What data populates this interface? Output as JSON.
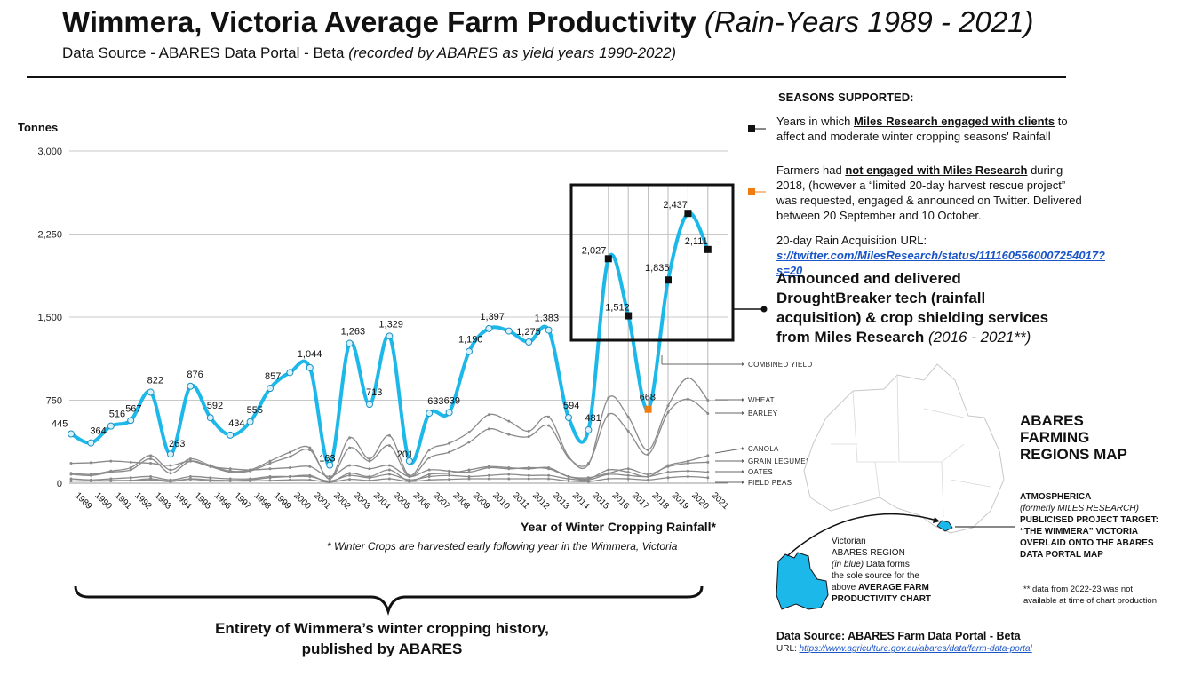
{
  "header": {
    "title_main": "Wimmera, Victoria Average Farm Productivity",
    "title_italic": "(Rain-Years 1989 - 2021)",
    "subtitle_main": "Data Source - ABARES Data Portal - Beta",
    "subtitle_italic": "(recorded by ABARES as yield years 1990-2022)"
  },
  "legend": {
    "heading": "SEASONS SUPPORTED:",
    "item1_pre": "Years in which ",
    "item1_link": "Miles Research engaged with clients",
    "item1_post": " to affect and moderate winter cropping seasons' Rainfall",
    "item2_pre": "Farmers had ",
    "item2_link": "not engaged with Miles Research",
    "item2_post": " during 2018, (however a “limited 20-day harvest rescue project” was requested, engaged & announced on Twitter. Delivered between 20 September and 10 October.",
    "url_label": "20-day Rain Acquisition URL: ",
    "url_text": "s://twitter.com/MilesResearch/status/1111605560007254017?s=20",
    "announce_main": "Announced and delivered DroughtBreaker tech (rainfall acquisition) & crop shielding services from Miles Research ",
    "announce_italic": "(2016 - 2021**)"
  },
  "chart_data": {
    "type": "line",
    "ylabel": "Tonnes",
    "xlabel": "Year of Winter Cropping Rainfall*",
    "ylim": [
      0,
      3000
    ],
    "yticks": [
      "0",
      "750",
      "1,500",
      "2,250",
      "3,000"
    ],
    "x": [
      "1989",
      "1990",
      "1991",
      "1992",
      "1993",
      "1994",
      "1995",
      "1996",
      "1997",
      "1998",
      "1999",
      "2000",
      "2001",
      "2002",
      "2003",
      "2004",
      "2005",
      "2006",
      "2007",
      "2008",
      "2009",
      "2010",
      "2011",
      "2012",
      "2013",
      "2014",
      "2015",
      "2016",
      "2017",
      "2018",
      "2019",
      "2020",
      "2021"
    ],
    "grid": "horizontal",
    "series": [
      {
        "name": "COMBINED  YIELD",
        "color": "#1cb8ea",
        "values": [
          445,
          364,
          516,
          567,
          822,
          263,
          876,
          592,
          434,
          555,
          857,
          1000,
          1044,
          163,
          1263,
          713,
          1329,
          201,
          633,
          639,
          1190,
          1397,
          1375,
          1275,
          1383,
          594,
          481,
          2027,
          1512,
          668,
          1835,
          2437,
          2111
        ],
        "labels": [
          "445",
          "364",
          "516",
          "567",
          "822",
          "263",
          "876",
          "592",
          "434",
          "555",
          "857",
          "",
          "1,044",
          "163",
          "1,263",
          "713",
          "1,329",
          "201",
          "633",
          "639",
          "1,190",
          "1,397",
          "",
          "1,275",
          "1,383",
          "594",
          "481",
          "2,027",
          "1,512",
          "668",
          "1,835",
          "2,437",
          "2,111"
        ]
      },
      {
        "name": "WHEAT",
        "color": "#777777",
        "values": [
          90,
          80,
          110,
          140,
          250,
          120,
          220,
          160,
          110,
          120,
          200,
          280,
          320,
          40,
          410,
          220,
          430,
          70,
          300,
          360,
          460,
          620,
          560,
          470,
          600,
          240,
          170,
          770,
          600,
          300,
          700,
          950,
          750
        ]
      },
      {
        "name": "BARLEY",
        "color": "#777777",
        "values": [
          80,
          70,
          100,
          120,
          220,
          90,
          200,
          150,
          100,
          110,
          180,
          240,
          300,
          40,
          320,
          200,
          340,
          60,
          230,
          280,
          370,
          490,
          440,
          420,
          520,
          230,
          180,
          620,
          470,
          260,
          640,
          760,
          630
        ]
      },
      {
        "name": "CANOLA",
        "color": "#777777",
        "values": [
          20,
          20,
          20,
          25,
          40,
          20,
          40,
          30,
          25,
          30,
          50,
          60,
          70,
          10,
          90,
          60,
          120,
          20,
          80,
          90,
          120,
          150,
          140,
          130,
          140,
          60,
          40,
          120,
          100,
          60,
          160,
          200,
          250
        ]
      },
      {
        "name": "GRAIN LEGUMES",
        "color": "#777777",
        "values": [
          180,
          185,
          200,
          190,
          180,
          160,
          200,
          150,
          130,
          120,
          130,
          140,
          150,
          60,
          160,
          130,
          160,
          60,
          120,
          110,
          100,
          140,
          130,
          140,
          130,
          60,
          50,
          90,
          130,
          80,
          150,
          180,
          190
        ]
      },
      {
        "name": "OATES",
        "color": "#777777",
        "values": [
          40,
          30,
          40,
          50,
          60,
          30,
          60,
          50,
          40,
          40,
          60,
          60,
          60,
          20,
          70,
          50,
          80,
          30,
          60,
          70,
          60,
          70,
          80,
          70,
          70,
          40,
          30,
          80,
          70,
          60,
          100,
          110,
          100
        ]
      },
      {
        "name": "FIELD PEAS",
        "color": "#777777",
        "values": [
          20,
          20,
          25,
          25,
          30,
          15,
          35,
          20,
          20,
          20,
          25,
          30,
          30,
          10,
          35,
          25,
          40,
          15,
          30,
          35,
          40,
          40,
          40,
          40,
          40,
          20,
          15,
          40,
          40,
          30,
          50,
          60,
          50
        ]
      }
    ],
    "markers": {
      "engaged_years": [
        "2016",
        "2017",
        "2019",
        "2020",
        "2021"
      ],
      "rescue_year": "2018"
    },
    "footnote": "* Winter Crops are harvested early following year in the Wimmera, Victoria",
    "bracket_label": "Entirety of Wimmera’s winter cropping history, published by ABARES"
  },
  "map": {
    "heading": "ABARES FARMING REGIONS MAP",
    "atmo_line1": "ATMOSPHERICA",
    "atmo_line2": "(formerly MILES RESEARCH)",
    "atmo_line3": "PUBLICISED PROJECT TARGET:",
    "atmo_line4": "“THE WIMMERA” VICTORIA",
    "atmo_line5": "OVERLAID ONTO THE ABARES",
    "atmo_line6": "DATA PORTAL MAP",
    "vic_line1": "Victorian",
    "vic_line2": "ABARES REGION",
    "vic_line3_italic": "(in blue)",
    "vic_line3_rest": " Data forms",
    "vic_line4": "the sole source for the",
    "vic_line5_pre": "above ",
    "vic_line5_bold": "AVERAGE FARM",
    "vic_line6": "PRODUCTIVITY CHART",
    "footnote2_line1": "** data from 2022-23 was not",
    "footnote2_line2": "available at time of chart production",
    "ds_foot": "Data Source: ABARES Farm Data Portal - Beta",
    "url_label": "URL: ",
    "url_text": "https://www.agriculture.gov.au/abares/data/farm-data-portal"
  }
}
